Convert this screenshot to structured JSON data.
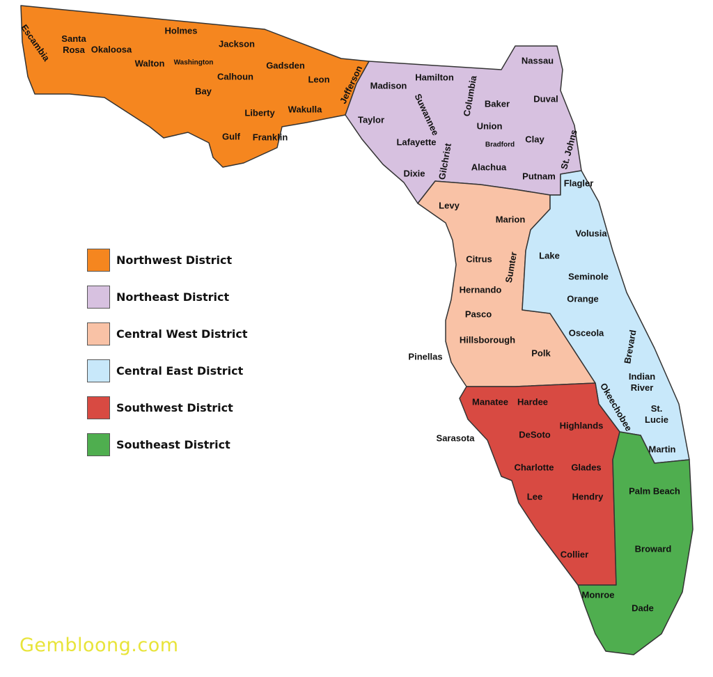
{
  "districts": [
    {
      "name": "Northwest District",
      "color": "#F5861F",
      "counties": [
        "Escambia",
        "Santa Rosa",
        "Okaloosa",
        "Walton",
        "Holmes",
        "Washington",
        "Jackson",
        "Bay",
        "Calhoun",
        "Gadsden",
        "Leon",
        "Jefferson",
        "Liberty",
        "Wakulla",
        "Gulf",
        "Franklin"
      ]
    },
    {
      "name": "Northeast District",
      "color": "#D7C1E0",
      "counties": [
        "Madison",
        "Hamilton",
        "Suwannee",
        "Columbia",
        "Baker",
        "Nassau",
        "Duval",
        "Taylor",
        "Lafayette",
        "Union",
        "Bradford",
        "Clay",
        "St. Johns",
        "Gilchrist",
        "Dixie",
        "Alachua",
        "Putnam"
      ]
    },
    {
      "name": "Central West District",
      "color": "#F9C2A6",
      "counties": [
        "Levy",
        "Marion",
        "Citrus",
        "Sumter",
        "Hernando",
        "Pasco",
        "Hillsborough",
        "Pinellas",
        "Polk"
      ]
    },
    {
      "name": "Central East District",
      "color": "#C8E8FA",
      "counties": [
        "Flagler",
        "Volusia",
        "Lake",
        "Seminole",
        "Orange",
        "Osceola",
        "Brevard",
        "Indian River",
        "Okeechobee",
        "St. Lucie",
        "Martin"
      ]
    },
    {
      "name": "Southwest District",
      "color": "#D84A42",
      "counties": [
        "Manatee",
        "Hardee",
        "Sarasota",
        "DeSoto",
        "Highlands",
        "Charlotte",
        "Glades",
        "Lee",
        "Hendry",
        "Collier"
      ]
    },
    {
      "name": "Southeast District",
      "color": "#4FAE4F",
      "counties": [
        "Palm Beach",
        "Broward",
        "Monroe",
        "Dade"
      ]
    }
  ],
  "watermark": "Gembloong.com"
}
